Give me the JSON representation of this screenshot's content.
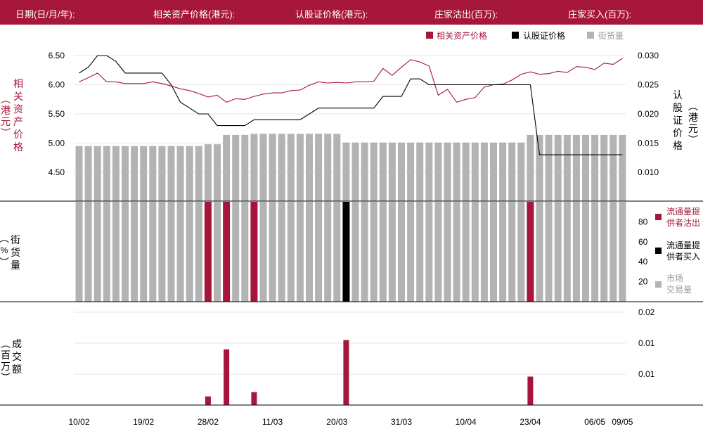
{
  "header": {
    "date_label": "日期(日/月/年):",
    "asset_price_label": "相关资产价格(港元):",
    "warrant_price_label": "认股证价格(港元):",
    "dealer_sell_label": "庄家沽出(百万):",
    "dealer_buy_label": "庄家买入(百万):"
  },
  "colors": {
    "brand": "#a6163a",
    "black": "#000000",
    "grey": "#b3b3b3"
  },
  "chart_data": {
    "type": "line",
    "x_tick_labels": [
      "10/02",
      "19/02",
      "28/02",
      "11/03",
      "20/03",
      "31/03",
      "10/04",
      "23/04",
      "06/05",
      "09/05"
    ],
    "x_tick_index": [
      0,
      7,
      14,
      21,
      28,
      35,
      42,
      49,
      56,
      59
    ],
    "panels": {
      "price": {
        "legend": [
          "相关资产价格",
          "认股证价格",
          "街货量"
        ],
        "left_axis_label": "相关资产价格（港元）",
        "right_axis_label": "认股证价格（港元）",
        "left_ticks": [
          "6.50",
          "6.00",
          "5.50",
          "5.00",
          "4.50"
        ],
        "left_range": [
          4.0,
          6.5
        ],
        "right_ticks": [
          "0.030",
          "0.025",
          "0.020",
          "0.015",
          "0.010"
        ],
        "right_range": [
          0.005,
          0.03
        ],
        "series": [
          {
            "name": "相关资产价格",
            "axis": "left",
            "values": [
              6.05,
              6.12,
              6.2,
              6.05,
              6.05,
              6.02,
              6.02,
              6.02,
              6.05,
              6.02,
              5.98,
              5.93,
              5.9,
              5.85,
              5.79,
              5.82,
              5.7,
              5.76,
              5.75,
              5.8,
              5.84,
              5.86,
              5.86,
              5.9,
              5.91,
              5.99,
              6.05,
              6.03,
              6.04,
              6.03,
              6.05,
              6.05,
              6.06,
              6.28,
              6.16,
              6.3,
              6.43,
              6.39,
              6.32,
              5.82,
              5.92,
              5.7,
              5.75,
              5.78,
              5.96,
              6.0,
              6.01,
              6.08,
              6.18,
              6.22,
              6.18,
              6.19,
              6.23,
              6.21,
              6.31,
              6.3,
              6.26,
              6.37,
              6.35,
              6.45
            ]
          },
          {
            "name": "认股证价格",
            "axis": "right",
            "values": [
              0.027,
              0.028,
              0.03,
              0.03,
              0.029,
              0.027,
              0.027,
              0.027,
              0.027,
              0.027,
              0.025,
              0.022,
              0.021,
              0.02,
              0.02,
              0.018,
              0.018,
              0.018,
              0.018,
              0.019,
              0.019,
              0.019,
              0.019,
              0.019,
              0.019,
              0.02,
              0.021,
              0.021,
              0.021,
              0.021,
              0.021,
              0.021,
              0.021,
              0.023,
              0.023,
              0.023,
              0.026,
              0.026,
              0.025,
              0.025,
              0.025,
              0.025,
              0.025,
              0.025,
              0.025,
              0.025,
              0.025,
              0.025,
              0.025,
              0.025,
              0.013,
              0.013,
              0.013,
              0.013,
              0.013,
              0.013,
              0.013,
              0.013,
              0.013,
              0.013
            ]
          }
        ],
        "outstanding_bars_left_units": [
          4.95,
          4.95,
          4.95,
          4.95,
          4.95,
          4.95,
          4.95,
          4.95,
          4.95,
          4.95,
          4.95,
          4.95,
          4.95,
          4.95,
          4.98,
          4.98,
          5.14,
          5.14,
          5.14,
          5.16,
          5.16,
          5.16,
          5.16,
          5.16,
          5.16,
          5.16,
          5.16,
          5.16,
          5.16,
          5.01,
          5.01,
          5.01,
          5.01,
          5.01,
          5.01,
          5.01,
          5.01,
          5.01,
          5.01,
          5.01,
          5.01,
          5.01,
          5.01,
          5.01,
          5.01,
          5.01,
          5.01,
          5.01,
          5.01,
          5.14,
          5.14,
          5.14,
          5.14,
          5.14,
          5.14,
          5.14,
          5.14,
          5.14,
          5.14,
          5.14
        ]
      },
      "market": {
        "axis_label": "（%）街货量",
        "ticks": [
          "80",
          "60",
          "40",
          "20"
        ],
        "range": [
          0,
          100
        ],
        "legend": [
          "流通量提供者沽出",
          "流通量提供者买入",
          "市场交易量"
        ],
        "values": [
          100,
          100,
          100,
          100,
          100,
          100,
          100,
          100,
          100,
          100,
          100,
          100,
          100,
          100,
          100,
          100,
          100,
          100,
          100,
          100,
          100,
          100,
          100,
          100,
          100,
          100,
          100,
          100,
          100,
          100,
          100,
          100,
          100,
          100,
          100,
          100,
          100,
          100,
          100,
          100,
          100,
          100,
          100,
          100,
          100,
          100,
          100,
          100,
          100,
          100,
          100,
          100,
          100,
          100,
          100,
          100,
          100,
          100,
          100,
          100
        ],
        "highlight": [
          {
            "index": 14,
            "kind": "sell"
          },
          {
            "index": 16,
            "kind": "sell"
          },
          {
            "index": 19,
            "kind": "sell"
          },
          {
            "index": 29,
            "kind": "buy"
          },
          {
            "index": 49,
            "kind": "sell"
          }
        ]
      },
      "turnover": {
        "axis_label": "（百万）成交额",
        "ticks": [
          "0.02",
          "0.01",
          "0.01"
        ],
        "range": [
          0,
          0.03
        ],
        "bars": [
          {
            "index": 14,
            "value": 0.0028
          },
          {
            "index": 16,
            "value": 0.018
          },
          {
            "index": 19,
            "value": 0.0042
          },
          {
            "index": 29,
            "value": 0.021
          },
          {
            "index": 49,
            "value": 0.0092
          }
        ]
      }
    }
  }
}
